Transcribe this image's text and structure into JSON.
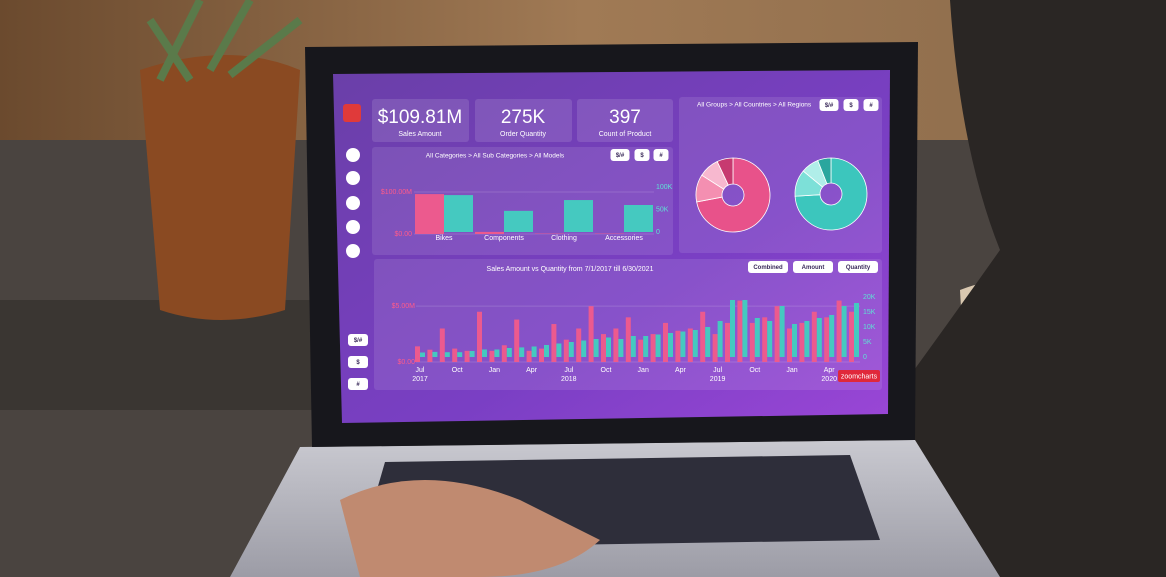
{
  "dashboard": {
    "sidebar_buttons": [
      "$/#",
      "$",
      "#"
    ],
    "kpis": [
      {
        "value": "$109.81M",
        "label": "Sales Amount"
      },
      {
        "value": "275K",
        "label": "Order Quantity"
      },
      {
        "value": "397",
        "label": "Count of Product"
      }
    ],
    "region_panel": {
      "breadcrumb": "All Groups > All Countries > All Regions",
      "buttons": [
        "$/#",
        "$",
        "#"
      ]
    },
    "brand": "zoomcharts"
  },
  "chart_data": [
    {
      "type": "bar",
      "breadcrumb": "All Categories > All Sub Categories > All Models",
      "buttons": [
        "$/#",
        "$",
        "#"
      ],
      "categories": [
        "Bikes",
        "Components",
        "Clothing",
        "Accessories"
      ],
      "series": [
        {
          "color": "#ec5a8e",
          "values": [
            95000000,
            5000000,
            1000000,
            1000000
          ]
        },
        {
          "color": "#45c9c0",
          "axis": "y2",
          "values": [
            82000,
            47000,
            71000,
            60000
          ]
        }
      ],
      "ylim": [
        0,
        100000000
      ],
      "yticks": [
        {
          "value": 0,
          "label": "$0.00"
        },
        {
          "value": 100000000,
          "label": "$100.00M"
        }
      ],
      "y2lim": [
        0,
        100000
      ],
      "y2ticks": [
        0,
        {
          "value": 50000,
          "label": "50K"
        },
        {
          "value": 100000,
          "label": "100K"
        }
      ]
    },
    {
      "type": "pie",
      "values": [
        72,
        12,
        9,
        7
      ],
      "colors": [
        "#e8528a",
        "#f48fb1",
        "#f7b8cf",
        "#c73a70"
      ]
    },
    {
      "type": "pie",
      "values": [
        74,
        12,
        8,
        6
      ],
      "colors": [
        "#3cc6bd",
        "#7de0d8",
        "#b0eee9",
        "#2aa69e"
      ]
    },
    {
      "type": "bar",
      "title": "Sales Amount vs Quantity from 7/1/2017 till 6/30/2021",
      "buttons": [
        "Combined",
        "Amount",
        "Quantity"
      ],
      "categories": [
        "Jul",
        null,
        null,
        "Oct",
        null,
        null,
        "Jan",
        null,
        null,
        "Apr",
        null,
        null,
        "Jul",
        null,
        null,
        "Oct",
        null,
        null,
        "Jan",
        null,
        null,
        "Apr",
        null,
        null,
        "Jul",
        null,
        null,
        "Oct",
        null,
        null,
        "Jan",
        null,
        null,
        "Apr",
        null,
        null
      ],
      "years": [
        "2017",
        null,
        null,
        null,
        null,
        null,
        null,
        null,
        null,
        null,
        null,
        null,
        "2018",
        null,
        null,
        null,
        null,
        null,
        null,
        null,
        null,
        null,
        null,
        null,
        "2019",
        null,
        null,
        null,
        null,
        null,
        null,
        null,
        null,
        "2020",
        null,
        null
      ],
      "series": [
        {
          "color": "#ec5a8e",
          "values": [
            1400000,
            1100000,
            3000000,
            1200000,
            1000000,
            4500000,
            1000000,
            1500000,
            3800000,
            1000000,
            1200000,
            3400000,
            2000000,
            3000000,
            5000000,
            2500000,
            3000000,
            4000000,
            2000000,
            2500000,
            3500000,
            2800000,
            3000000,
            4500000,
            2500000,
            3500000,
            5500000,
            3500000,
            4000000,
            5000000,
            3000000,
            3500000,
            4500000,
            4000000,
            5500000,
            4500000
          ]
        },
        {
          "color": "#45c9c0",
          "axis": "y2",
          "values": [
            1500,
            1700,
            1600,
            1600,
            2000,
            2500,
            2500,
            3000,
            3200,
            3500,
            4000,
            4500,
            5000,
            5500,
            6000,
            6500,
            6000,
            7000,
            7000,
            7500,
            8000,
            8500,
            9000,
            10000,
            12000,
            19000,
            19000,
            13000,
            12000,
            17000,
            11000,
            12000,
            13000,
            14000,
            17000,
            18000
          ]
        }
      ],
      "ylim": [
        0,
        6000000
      ],
      "yticks": [
        {
          "value": 0,
          "label": "$0.00"
        },
        {
          "value": 5000000,
          "label": "$5.00M"
        }
      ],
      "y2lim": [
        0,
        20000
      ],
      "y2ticks": [
        0,
        {
          "value": 5000,
          "label": "5K"
        },
        {
          "value": 10000,
          "label": "10K"
        },
        {
          "value": 15000,
          "label": "15K"
        },
        {
          "value": 20000,
          "label": "20K"
        }
      ]
    }
  ]
}
